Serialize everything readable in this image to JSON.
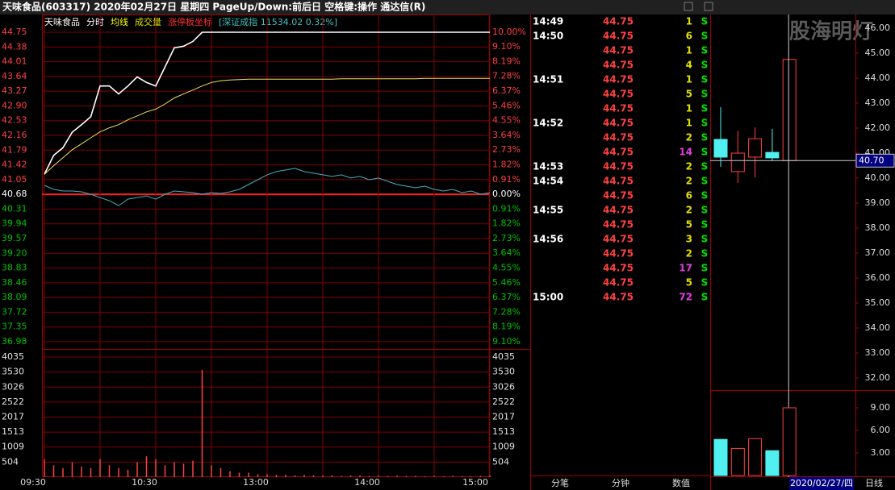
{
  "header": {
    "title": "天味食品(603317)  2020年02月27日 星期四  PageUp/Down:前后日 空格键:操作 通达信(R)"
  },
  "watermark": "股海明灯",
  "intraday": {
    "type": "line",
    "legend": [
      {
        "text": "天味食品",
        "color": "#ffffff"
      },
      {
        "text": "分时",
        "color": "#ffffff"
      },
      {
        "text": "均线",
        "color": "#ffff00"
      },
      {
        "text": "成交量",
        "color": "#e0e000"
      },
      {
        "text": "涨停板坐标",
        "color": "#ff3030"
      },
      {
        "text": "[深证成指 11534.02 0.32%]",
        "color": "#40c0c0"
      }
    ],
    "up_color": "#ff4040",
    "down_color": "#00c000",
    "flat_color": "#ffffff",
    "x": [
      0,
      5,
      10,
      15,
      20,
      25,
      30,
      35,
      40,
      45,
      50,
      55,
      60,
      65,
      70,
      75,
      80,
      85,
      90,
      95,
      100,
      105,
      110,
      115,
      120,
      125,
      130,
      135,
      140,
      145,
      150,
      155,
      160,
      165,
      170,
      175,
      180,
      185,
      190,
      195,
      200,
      205,
      210,
      215,
      220,
      225,
      230,
      235,
      240
    ],
    "xlim": [
      0,
      240
    ],
    "xticks": [
      {
        "value": 0,
        "label": "09:30"
      },
      {
        "value": 60,
        "label": "10:30"
      },
      {
        "value": 120,
        "label": "13:00"
      },
      {
        "value": 180,
        "label": "14:00"
      },
      {
        "value": 240,
        "label": "15:00"
      }
    ],
    "ylim": [
      36.98,
      44.75
    ],
    "yticks": [
      44.75,
      44.38,
      44.01,
      43.64,
      43.27,
      {
        "value": 42.9,
        "label": "42.90"
      },
      42.53,
      42.16,
      41.79,
      41.42,
      41.05,
      40.68,
      40.31,
      39.94,
      39.57,
      {
        "value": 39.2,
        "label": "39.20"
      },
      38.83,
      38.46,
      38.09,
      37.72,
      37.35,
      36.98
    ],
    "y2lim": [
      -9.1,
      10.0
    ],
    "y2ticks": [
      {
        "value": 10,
        "label": "10.00%"
      },
      {
        "value": 9.1,
        "label": "9.10%"
      },
      {
        "value": 8.19,
        "label": "8.19%"
      },
      {
        "value": 7.28,
        "label": "7.28%"
      },
      {
        "value": 6.37,
        "label": "6.37%"
      },
      {
        "value": 5.46,
        "label": "5.46%"
      },
      {
        "value": 4.55,
        "label": "4.55%"
      },
      {
        "value": 3.64,
        "label": "3.64%"
      },
      {
        "value": 2.73,
        "label": "2.73%"
      },
      {
        "value": 1.82,
        "label": "1.82%"
      },
      {
        "value": 0.91,
        "label": "0.91%"
      },
      {
        "value": 0,
        "label": "0.00%"
      },
      {
        "value": -0.91,
        "label": "0.91%"
      },
      {
        "value": -1.82,
        "label": "1.82%"
      },
      {
        "value": -2.73,
        "label": "2.73%"
      },
      {
        "value": -3.64,
        "label": "3.64%"
      },
      {
        "value": -4.55,
        "label": "4.55%"
      },
      {
        "value": -5.46,
        "label": "5.46%"
      },
      {
        "value": -6.37,
        "label": "6.37%"
      },
      {
        "value": -7.28,
        "label": "7.28%"
      },
      {
        "value": -8.19,
        "label": "8.19%"
      },
      {
        "value": -9.1,
        "label": "9.10%"
      }
    ],
    "series": [
      {
        "name": "分时",
        "color": "#ffffff",
        "values": [
          41.18,
          41.66,
          41.85,
          42.24,
          42.43,
          42.63,
          43.4,
          43.4,
          43.2,
          43.4,
          43.63,
          43.49,
          43.4,
          43.88,
          44.36,
          44.4,
          44.52,
          44.75,
          44.75,
          44.75,
          44.75,
          44.75,
          44.75,
          44.75,
          44.75,
          44.75,
          44.75,
          44.75,
          44.75,
          44.75,
          44.75,
          44.75,
          44.75,
          44.75,
          44.75,
          44.75,
          44.75,
          44.75,
          44.75,
          44.75,
          44.75,
          44.75,
          44.75,
          44.75,
          44.75,
          44.75,
          44.75,
          44.75,
          44.75
        ]
      },
      {
        "name": "均线",
        "color": "#f0e060",
        "values": [
          41.18,
          41.4,
          41.6,
          41.8,
          41.95,
          42.1,
          42.25,
          42.35,
          42.43,
          42.55,
          42.65,
          42.75,
          42.82,
          42.95,
          43.1,
          43.2,
          43.3,
          43.4,
          43.49,
          43.53,
          43.55,
          43.56,
          43.57,
          43.57,
          43.57,
          43.57,
          43.57,
          43.57,
          43.57,
          43.57,
          43.57,
          43.57,
          43.58,
          43.58,
          43.58,
          43.58,
          43.58,
          43.58,
          43.58,
          43.58,
          43.58,
          43.59,
          43.59,
          43.59,
          43.59,
          43.59,
          43.59,
          43.59,
          43.59
        ]
      },
      {
        "name": "深证成指",
        "color": "#40b0c0",
        "axis": "y2",
        "values": [
          0.55,
          0.3,
          0.2,
          0.2,
          0.15,
          0.0,
          -0.2,
          -0.4,
          -0.7,
          -0.3,
          -0.2,
          -0.1,
          -0.3,
          0.0,
          0.2,
          0.15,
          0.1,
          0.0,
          0.1,
          0.05,
          0.15,
          0.3,
          0.6,
          0.9,
          1.2,
          1.4,
          1.5,
          1.6,
          1.4,
          1.3,
          1.2,
          1.1,
          1.2,
          1.0,
          1.1,
          0.9,
          1.0,
          0.8,
          0.6,
          0.5,
          0.4,
          0.5,
          0.3,
          0.2,
          0.3,
          0.1,
          0.2,
          0.0,
          0.1
        ]
      }
    ],
    "volume": {
      "color": "#ff4040",
      "values": [
        600,
        400,
        300,
        500,
        350,
        300,
        600,
        400,
        300,
        250,
        500,
        700,
        600,
        400,
        500,
        450,
        550,
        3600,
        400,
        300,
        200,
        150,
        150,
        100,
        100,
        80,
        80,
        60,
        80,
        60,
        50,
        60,
        40,
        50,
        60,
        40,
        50,
        40,
        50,
        40,
        40,
        30,
        40,
        30,
        40,
        30,
        30,
        40,
        60
      ],
      "ylim": [
        0,
        4035
      ],
      "yticks": [
        4035,
        3530,
        3026,
        2522,
        2017,
        1513,
        1009,
        504
      ]
    }
  },
  "ticks_list": {
    "rows": [
      {
        "time": "14:49",
        "price": "44.75",
        "volume": 1,
        "side": "S"
      },
      {
        "time": "14:50",
        "price": "44.75",
        "volume": 6,
        "side": "S"
      },
      {
        "price": "44.75",
        "volume": 1,
        "side": "S"
      },
      {
        "price": "44.75",
        "volume": 4,
        "side": "S"
      },
      {
        "time": "14:51",
        "price": "44.75",
        "volume": 1,
        "side": "S"
      },
      {
        "price": "44.75",
        "volume": 5,
        "side": "S"
      },
      {
        "price": "44.75",
        "volume": 1,
        "side": "S"
      },
      {
        "time": "14:52",
        "price": "44.75",
        "volume": 1,
        "side": "S"
      },
      {
        "price": "44.75",
        "volume": 2,
        "side": "S"
      },
      {
        "price": "44.75",
        "volume": 14,
        "side": "S",
        "color": "#e040e0"
      },
      {
        "time": "14:53",
        "price": "44.75",
        "volume": 2,
        "side": "S"
      },
      {
        "time": "14:54",
        "price": "44.75",
        "volume": 2,
        "side": "S"
      },
      {
        "price": "44.75",
        "volume": 6,
        "side": "S"
      },
      {
        "time": "14:55",
        "price": "44.75",
        "volume": 2,
        "side": "S"
      },
      {
        "price": "44.75",
        "volume": 5,
        "side": "S"
      },
      {
        "time": "14:56",
        "price": "44.75",
        "volume": 3,
        "side": "S"
      },
      {
        "price": "44.75",
        "volume": 2,
        "side": "S"
      },
      {
        "price": "44.75",
        "volume": 17,
        "side": "S",
        "color": "#e040e0"
      },
      {
        "price": "44.75",
        "volume": 5,
        "side": "S"
      },
      {
        "time": "15:00",
        "price": "44.75",
        "volume": 72,
        "side": "S",
        "color": "#e040e0"
      }
    ],
    "tabs": [
      "分笔",
      "分钟",
      "数值"
    ]
  },
  "daily": {
    "type": "candlestick",
    "up_color": "#ff4040",
    "down_color": "#50f0f0",
    "ylim": [
      32,
      46
    ],
    "yticks": [
      {
        "value": 46,
        "label": "46.00"
      },
      {
        "value": 45,
        "label": "45.00"
      },
      {
        "value": 44,
        "label": "44.00"
      },
      {
        "value": 43,
        "label": "43.00"
      },
      {
        "value": 42,
        "label": "42.00"
      },
      {
        "value": 41,
        "label": "41.00"
      },
      {
        "value": 40,
        "label": "40.00"
      },
      {
        "value": 39,
        "label": "39.00"
      },
      {
        "value": 38,
        "label": "38.00"
      },
      {
        "value": 37,
        "label": "37.00"
      },
      {
        "value": 36,
        "label": "36.00"
      },
      {
        "value": 35,
        "label": "35.00"
      },
      {
        "value": 34,
        "label": "34.00"
      },
      {
        "value": 33,
        "label": "33.00"
      },
      {
        "value": 32,
        "label": "32.00"
      }
    ],
    "open": [
      41.55,
      40.26,
      40.84,
      41.03,
      40.7
    ],
    "high": [
      42.84,
      41.9,
      42.03,
      41.97,
      44.75
    ],
    "low": [
      40.45,
      39.81,
      40.03,
      40.68,
      40.7
    ],
    "close": [
      40.84,
      41.0,
      41.58,
      40.81,
      44.75
    ],
    "cursor": {
      "value": 40.7,
      "label": "40.70"
    },
    "volume": {
      "values": [
        4.8,
        3.6,
        4.9,
        3.3,
        9.0
      ],
      "ylim": [
        0,
        11.25
      ],
      "yticks": [
        {
          "value": 9,
          "label": "9.00"
        },
        {
          "value": 6,
          "label": "6.00"
        },
        {
          "value": 3,
          "label": "3.00"
        }
      ]
    },
    "date": "2020/02/27/四",
    "period": "日线"
  }
}
